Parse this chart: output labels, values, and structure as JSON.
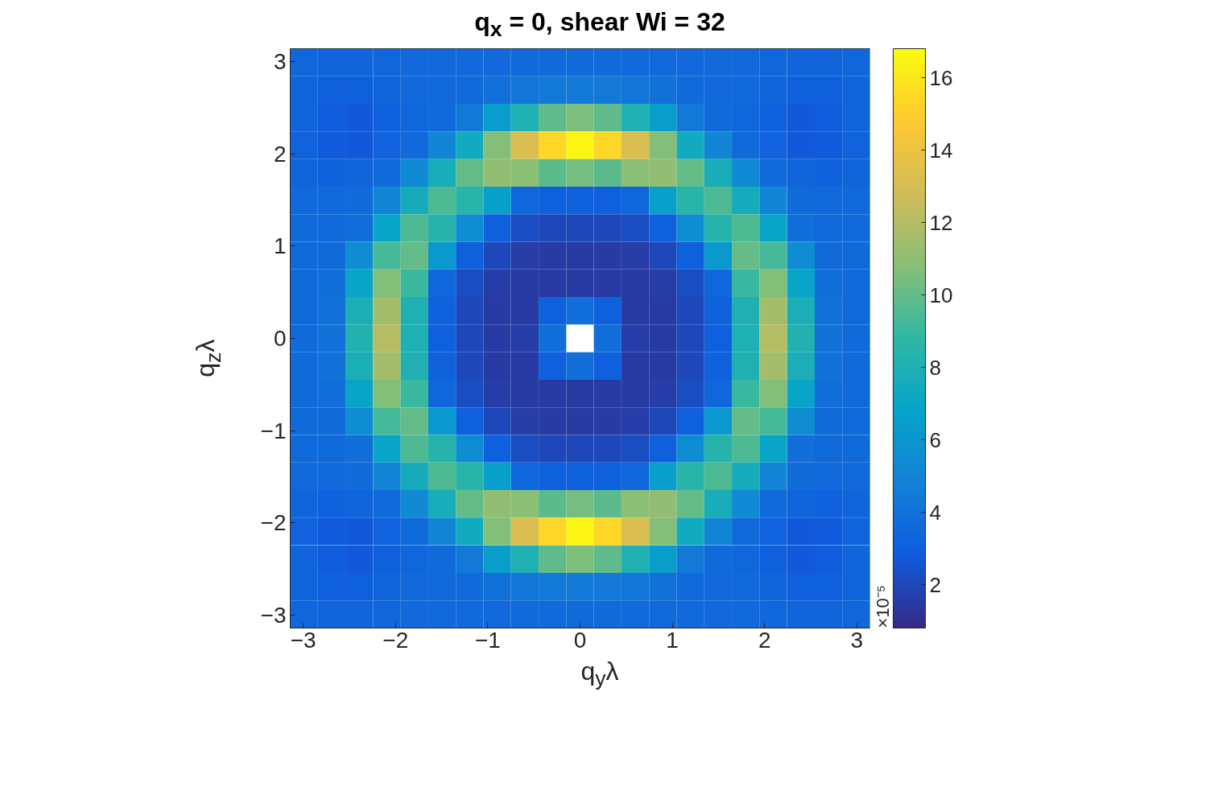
{
  "chart_data": {
    "type": "heatmap",
    "title": "q$_{x}$ = 0, shear Wi = 32",
    "xlabel": "q$_{y}$λ",
    "ylabel": "q$_{z}$λ",
    "clabel": "×10⁻⁵",
    "x": [
      -2.992,
      -2.693,
      -2.394,
      -2.094,
      -1.795,
      -1.496,
      -1.197,
      -0.898,
      -0.598,
      -0.299,
      0,
      0.299,
      0.598,
      0.898,
      1.197,
      1.496,
      1.795,
      2.094,
      2.394,
      2.693,
      2.992
    ],
    "y": [
      2.992,
      2.693,
      2.394,
      2.094,
      1.795,
      1.496,
      1.197,
      0.898,
      0.598,
      0.299,
      0,
      -0.299,
      -0.598,
      -0.898,
      -1.197,
      -1.496,
      -1.795,
      -2.094,
      -2.394,
      -2.693,
      -2.992
    ],
    "cells": [
      [
        3.4,
        3.3,
        3.3,
        3.4,
        3.5,
        3.5,
        3.5,
        3.5,
        3.6,
        3.6,
        3.6,
        3.6,
        3.6,
        3.5,
        3.5,
        3.5,
        3.5,
        3.4,
        3.3,
        3.3,
        3.4
      ],
      [
        3.3,
        3.0,
        3.0,
        3.3,
        3.5,
        3.5,
        3.6,
        3.9,
        4.2,
        4.4,
        4.5,
        4.4,
        4.2,
        3.9,
        3.6,
        3.5,
        3.5,
        3.3,
        3.0,
        3.0,
        3.3
      ],
      [
        3.3,
        2.9,
        2.7,
        3.0,
        3.4,
        3.6,
        4.4,
        6.4,
        8.0,
        9.9,
        10.6,
        9.9,
        8.0,
        6.4,
        4.4,
        3.6,
        3.4,
        3.0,
        2.7,
        2.9,
        3.3
      ],
      [
        3.2,
        2.8,
        2.7,
        3.2,
        3.6,
        5.1,
        7.4,
        10.7,
        13.2,
        15.3,
        16.5,
        15.3,
        13.2,
        10.7,
        7.4,
        5.1,
        3.6,
        3.2,
        2.7,
        2.8,
        3.2
      ],
      [
        3.3,
        3.1,
        3.3,
        3.6,
        5.3,
        7.7,
        10.0,
        11.1,
        10.9,
        9.8,
        10.4,
        9.8,
        10.9,
        11.1,
        10.0,
        7.7,
        5.3,
        3.6,
        3.3,
        3.1,
        3.3
      ],
      [
        3.5,
        3.5,
        3.7,
        5.1,
        7.6,
        9.5,
        8.5,
        6.6,
        3.4,
        3.0,
        3.0,
        3.0,
        3.4,
        6.6,
        8.5,
        9.5,
        7.6,
        5.1,
        3.7,
        3.5,
        3.5
      ],
      [
        3.6,
        3.6,
        3.8,
        6.9,
        9.5,
        8.4,
        5.5,
        3.0,
        2.2,
        2.0,
        2.0,
        2.0,
        2.2,
        3.0,
        5.5,
        8.4,
        9.5,
        6.9,
        3.8,
        3.6,
        3.6
      ],
      [
        3.6,
        3.7,
        5.5,
        9.3,
        10.0,
        6.2,
        3.0,
        2.0,
        1.6,
        1.5,
        1.5,
        1.5,
        1.6,
        2.0,
        3.0,
        6.2,
        10.0,
        9.3,
        5.5,
        3.7,
        3.6
      ],
      [
        3.6,
        3.8,
        6.9,
        10.7,
        9.0,
        3.4,
        2.2,
        1.6,
        1.5,
        1.5,
        1.5,
        1.5,
        1.5,
        1.6,
        2.2,
        3.4,
        9.0,
        10.7,
        6.9,
        3.8,
        3.6
      ],
      [
        3.6,
        4.0,
        7.9,
        11.6,
        8.1,
        3.1,
        2.0,
        1.5,
        1.5,
        3.0,
        3.8,
        3.0,
        1.5,
        1.5,
        2.0,
        3.1,
        8.1,
        11.6,
        7.9,
        4.0,
        3.6
      ],
      [
        3.6,
        4.0,
        8.2,
        12.0,
        8.0,
        3.0,
        2.0,
        1.5,
        1.6,
        3.8,
        null,
        3.8,
        1.6,
        1.5,
        2.0,
        3.0,
        8.0,
        12.0,
        8.2,
        4.0,
        3.6
      ],
      [
        3.6,
        4.0,
        7.9,
        11.6,
        8.1,
        3.1,
        2.0,
        1.5,
        1.5,
        3.0,
        3.8,
        3.0,
        1.5,
        1.5,
        2.0,
        3.1,
        8.1,
        11.6,
        7.9,
        4.0,
        3.6
      ],
      [
        3.6,
        3.8,
        6.9,
        10.7,
        9.0,
        3.4,
        2.2,
        1.6,
        1.5,
        1.5,
        1.5,
        1.5,
        1.5,
        1.6,
        2.2,
        3.4,
        9.0,
        10.7,
        6.9,
        3.8,
        3.6
      ],
      [
        3.6,
        3.7,
        5.5,
        9.3,
        10.0,
        6.2,
        3.0,
        2.0,
        1.6,
        1.5,
        1.5,
        1.5,
        1.6,
        2.0,
        3.0,
        6.2,
        10.0,
        9.3,
        5.5,
        3.7,
        3.6
      ],
      [
        3.6,
        3.6,
        3.8,
        6.9,
        9.5,
        8.4,
        5.5,
        3.0,
        2.2,
        2.0,
        2.0,
        2.0,
        2.2,
        3.0,
        5.5,
        8.4,
        9.5,
        6.9,
        3.8,
        3.6,
        3.6
      ],
      [
        3.5,
        3.5,
        3.7,
        5.1,
        7.6,
        9.5,
        8.5,
        6.6,
        3.4,
        3.0,
        3.0,
        3.0,
        3.4,
        6.6,
        8.5,
        9.5,
        7.6,
        5.1,
        3.7,
        3.5,
        3.5
      ],
      [
        3.3,
        3.1,
        3.3,
        3.6,
        5.3,
        7.7,
        10.0,
        11.1,
        10.9,
        9.8,
        10.4,
        9.8,
        10.9,
        11.1,
        10.0,
        7.7,
        5.3,
        3.6,
        3.3,
        3.1,
        3.3
      ],
      [
        3.2,
        2.8,
        2.7,
        3.2,
        3.6,
        5.1,
        7.4,
        10.7,
        13.2,
        15.3,
        16.5,
        15.3,
        13.2,
        10.7,
        7.4,
        5.1,
        3.6,
        3.2,
        2.7,
        2.8,
        3.2
      ],
      [
        3.3,
        2.9,
        2.7,
        3.0,
        3.4,
        3.6,
        4.4,
        6.4,
        8.0,
        9.9,
        10.6,
        9.9,
        8.0,
        6.4,
        4.4,
        3.6,
        3.4,
        3.0,
        2.7,
        2.9,
        3.3
      ],
      [
        3.3,
        3.0,
        3.0,
        3.3,
        3.5,
        3.5,
        3.6,
        3.9,
        4.2,
        4.4,
        4.5,
        4.4,
        4.2,
        3.9,
        3.6,
        3.5,
        3.5,
        3.3,
        3.0,
        3.0,
        3.3
      ],
      [
        3.4,
        3.3,
        3.3,
        3.4,
        3.5,
        3.5,
        3.5,
        3.5,
        3.6,
        3.6,
        3.6,
        3.6,
        3.6,
        3.5,
        3.5,
        3.5,
        3.5,
        3.4,
        3.3,
        3.3,
        3.4
      ]
    ],
    "xlim": [
      -3.1416,
      3.1416
    ],
    "ylim": [
      -3.1416,
      3.1416
    ],
    "xticks": [
      -3,
      -2,
      -1,
      0,
      1,
      2,
      3
    ],
    "yticks": [
      -3,
      -2,
      -1,
      0,
      1,
      2,
      3
    ],
    "clim": [
      0.8,
      16.8
    ],
    "cticks": [
      2,
      4,
      6,
      8,
      10,
      12,
      14,
      16
    ],
    "grid": false
  }
}
